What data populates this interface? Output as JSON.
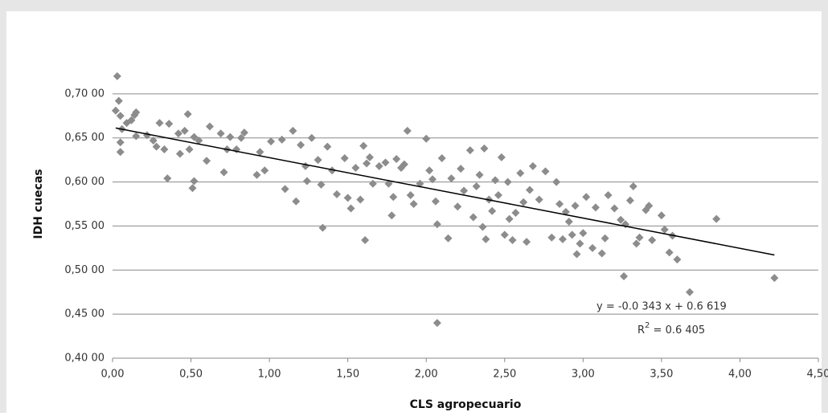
{
  "chart_data": {
    "type": "scatter",
    "x_label": "CLS agropecuario",
    "y_label": "IDH cuecas",
    "color": "#8c8c8c",
    "grid": true,
    "xlim": [
      0,
      4.5
    ],
    "xticks": [
      {
        "value": 0,
        "label": "0,00"
      },
      {
        "value": 0.5,
        "label": "0,50"
      },
      {
        "value": 1,
        "label": "1,00"
      },
      {
        "value": 1.5,
        "label": "1,50"
      },
      {
        "value": 2,
        "label": "2,00"
      },
      {
        "value": 2.5,
        "label": "2,50"
      },
      {
        "value": 3,
        "label": "3,00"
      },
      {
        "value": 3.5,
        "label": "3,50"
      },
      {
        "value": 4,
        "label": "4,00"
      },
      {
        "value": 4.5,
        "label": "4,50"
      }
    ],
    "ylim": [
      0.4,
      0.75
    ],
    "yticks": [
      {
        "value": 0.4,
        "label": "0,40 00"
      },
      {
        "value": 0.45,
        "label": "0,45 00"
      },
      {
        "value": 0.5,
        "label": "0,50 00"
      },
      {
        "value": 0.55,
        "label": "0,55 00"
      },
      {
        "value": 0.6,
        "label": "0,60 00"
      },
      {
        "value": 0.65,
        "label": "0,65 00"
      },
      {
        "value": 0.7,
        "label": "0,70 00"
      }
    ],
    "x": [
      0.03,
      0.04,
      0.02,
      0.05,
      0.06,
      0.05,
      0.05,
      0.09,
      0.12,
      0.15,
      0.14,
      0.15,
      0.22,
      0.26,
      0.28,
      0.3,
      0.33,
      0.35,
      0.36,
      0.42,
      0.43,
      0.46,
      0.48,
      0.49,
      0.51,
      0.52,
      0.52,
      0.55,
      0.6,
      0.62,
      0.69,
      0.71,
      0.73,
      0.75,
      0.79,
      0.82,
      0.84,
      0.92,
      0.94,
      0.97,
      1.01,
      1.08,
      1.1,
      1.15,
      1.17,
      1.2,
      1.23,
      1.24,
      1.27,
      1.31,
      1.33,
      1.34,
      1.37,
      1.4,
      1.43,
      1.48,
      1.5,
      1.52,
      1.55,
      1.58,
      1.6,
      1.61,
      1.62,
      1.64,
      1.66,
      1.7,
      1.74,
      1.76,
      1.78,
      1.79,
      1.81,
      1.84,
      1.86,
      1.88,
      1.9,
      1.92,
      1.96,
      2.0,
      2.02,
      2.04,
      2.06,
      2.07,
      2.07,
      2.1,
      2.14,
      2.16,
      2.2,
      2.22,
      2.24,
      2.28,
      2.3,
      2.32,
      2.34,
      2.36,
      2.37,
      2.38,
      2.4,
      2.42,
      2.44,
      2.46,
      2.48,
      2.5,
      2.52,
      2.53,
      2.55,
      2.57,
      2.6,
      2.62,
      2.64,
      2.66,
      2.68,
      2.72,
      2.76,
      2.8,
      2.83,
      2.85,
      2.87,
      2.89,
      2.91,
      2.93,
      2.95,
      2.96,
      2.98,
      3.0,
      3.02,
      3.06,
      3.08,
      3.12,
      3.14,
      3.16,
      3.2,
      3.24,
      3.26,
      3.27,
      3.3,
      3.32,
      3.34,
      3.36,
      3.4,
      3.42,
      3.44,
      3.5,
      3.52,
      3.55,
      3.57,
      3.6,
      3.68,
      3.85,
      4.22
    ],
    "values": [
      0.72,
      0.692,
      0.681,
      0.675,
      0.66,
      0.645,
      0.634,
      0.667,
      0.67,
      0.679,
      0.676,
      0.652,
      0.653,
      0.647,
      0.64,
      0.667,
      0.637,
      0.604,
      0.666,
      0.655,
      0.632,
      0.658,
      0.677,
      0.637,
      0.593,
      0.601,
      0.651,
      0.647,
      0.624,
      0.663,
      0.655,
      0.611,
      0.637,
      0.651,
      0.637,
      0.65,
      0.656,
      0.608,
      0.634,
      0.613,
      0.646,
      0.648,
      0.592,
      0.658,
      0.578,
      0.642,
      0.618,
      0.601,
      0.65,
      0.625,
      0.597,
      0.548,
      0.64,
      0.613,
      0.586,
      0.627,
      0.582,
      0.57,
      0.616,
      0.58,
      0.641,
      0.534,
      0.621,
      0.628,
      0.598,
      0.618,
      0.622,
      0.598,
      0.562,
      0.583,
      0.626,
      0.616,
      0.62,
      0.658,
      0.585,
      0.575,
      0.598,
      0.649,
      0.613,
      0.603,
      0.578,
      0.552,
      0.44,
      0.627,
      0.536,
      0.604,
      0.572,
      0.615,
      0.59,
      0.636,
      0.56,
      0.595,
      0.608,
      0.549,
      0.638,
      0.535,
      0.58,
      0.567,
      0.602,
      0.585,
      0.628,
      0.54,
      0.6,
      0.558,
      0.534,
      0.565,
      0.61,
      0.577,
      0.532,
      0.591,
      0.618,
      0.58,
      0.612,
      0.537,
      0.6,
      0.575,
      0.535,
      0.566,
      0.555,
      0.54,
      0.573,
      0.518,
      0.53,
      0.542,
      0.583,
      0.525,
      0.571,
      0.519,
      0.536,
      0.585,
      0.57,
      0.557,
      0.493,
      0.552,
      0.579,
      0.595,
      0.53,
      0.537,
      0.568,
      0.573,
      0.534,
      0.562,
      0.546,
      0.52,
      0.539,
      0.512,
      0.475,
      0.558,
      0.491
    ],
    "trendline": {
      "slope": -0.0343,
      "intercept": 0.6619,
      "xrange": [
        0.02,
        4.22
      ],
      "color": "#000000"
    },
    "equation": "y = -0.0 343 x + 0.6 619",
    "r2_label": {
      "base": "R",
      "sup": "2",
      "rest": " = 0.6 405"
    }
  }
}
